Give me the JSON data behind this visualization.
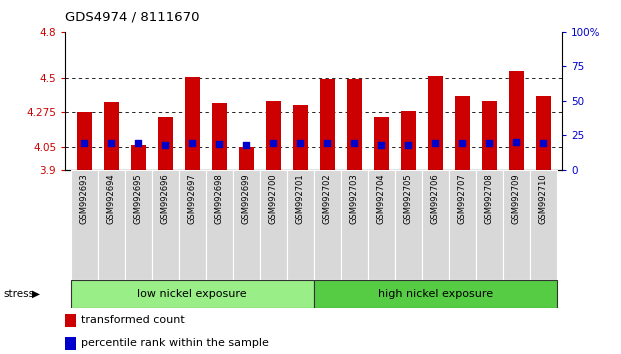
{
  "title": "GDS4974 / 8111670",
  "samples": [
    "GSM992693",
    "GSM992694",
    "GSM992695",
    "GSM992696",
    "GSM992697",
    "GSM992698",
    "GSM992699",
    "GSM992700",
    "GSM992701",
    "GSM992702",
    "GSM992703",
    "GSM992704",
    "GSM992705",
    "GSM992706",
    "GSM992707",
    "GSM992708",
    "GSM992709",
    "GSM992710"
  ],
  "red_values": [
    4.275,
    4.34,
    4.06,
    4.245,
    4.505,
    4.335,
    4.05,
    4.35,
    4.32,
    4.495,
    4.49,
    4.245,
    4.285,
    4.51,
    4.385,
    4.35,
    4.545,
    4.38
  ],
  "blue_values": [
    4.075,
    4.075,
    4.075,
    4.065,
    4.075,
    4.07,
    4.06,
    4.075,
    4.075,
    4.075,
    4.075,
    4.065,
    4.065,
    4.075,
    4.075,
    4.075,
    4.085,
    4.075
  ],
  "ymin": 3.9,
  "ymax": 4.8,
  "yticks": [
    3.9,
    4.05,
    4.275,
    4.5,
    4.8
  ],
  "ytick_labels": [
    "3.9",
    "4.05",
    "4.275",
    "4.5",
    "4.8"
  ],
  "right_yticks": [
    0,
    25,
    50,
    75,
    100
  ],
  "right_ytick_labels": [
    "0",
    "25",
    "50",
    "75",
    "100%"
  ],
  "group1_label": "low nickel exposure",
  "group2_label": "high nickel exposure",
  "group1_count": 9,
  "group2_count": 9,
  "stress_label": "stress",
  "legend1": "transformed count",
  "legend2": "percentile rank within the sample",
  "bar_color": "#cc0000",
  "dot_color": "#0000cc",
  "group1_color": "#99ee88",
  "group2_color": "#55cc44",
  "bar_width": 0.55,
  "baseline": 3.9,
  "fig_width": 6.21,
  "fig_height": 3.54,
  "dpi": 100
}
